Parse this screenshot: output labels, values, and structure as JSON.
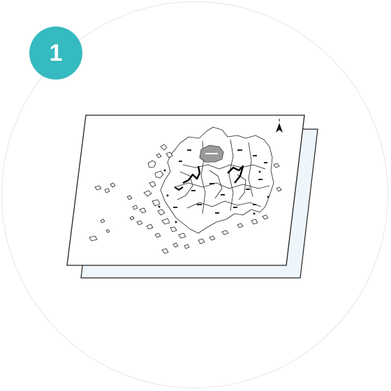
{
  "step": {
    "number": "1",
    "badge_color": "#35babf",
    "text_color": "#ffffff"
  },
  "illustration": {
    "subject": "map-printout",
    "front_sheet_color": "#ffffff",
    "back_sheet_color": "#eef5fb",
    "highlight_region_color": "#9a9a9a",
    "outline_color": "#222222"
  },
  "frame": {
    "border_color": "#e6e6e6"
  }
}
